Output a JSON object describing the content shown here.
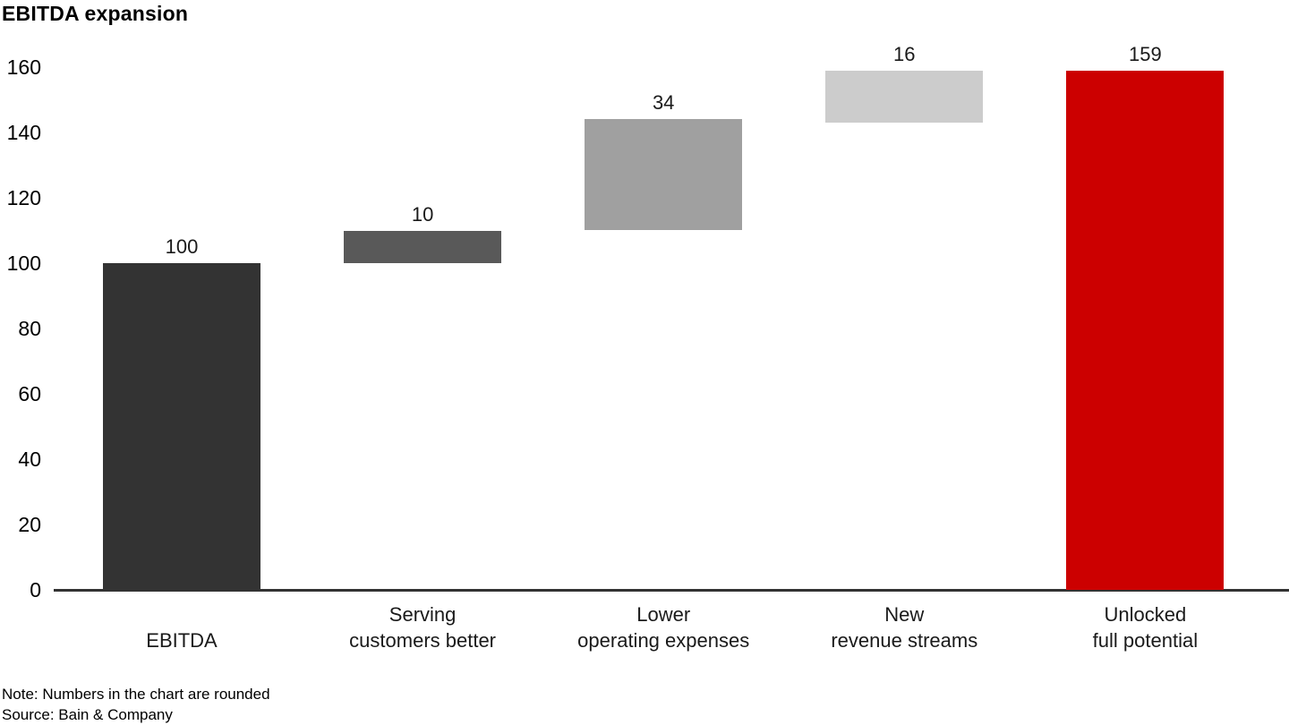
{
  "title": "EBITDA expansion",
  "note": "Note: Numbers in the chart are rounded",
  "source": "Source: Bain & Company",
  "chart_data": {
    "type": "bar",
    "subtype": "waterfall",
    "title": "EBITDA expansion",
    "categories": [
      "EBITDA",
      "Serving customers better",
      "Lower operating expenses",
      "New revenue streams",
      "Unlocked full potential"
    ],
    "category_lines": [
      [
        "EBITDA"
      ],
      [
        "Serving",
        "customers better"
      ],
      [
        "Lower",
        "operating expenses"
      ],
      [
        "New",
        "revenue streams"
      ],
      [
        "Unlocked",
        "full potential"
      ]
    ],
    "values": [
      100,
      10,
      34,
      16,
      159
    ],
    "value_labels": [
      "100",
      "10",
      "34",
      "16",
      "159"
    ],
    "bar_segments": [
      [
        0,
        100
      ],
      [
        100,
        110
      ],
      [
        110,
        144
      ],
      [
        143,
        159
      ],
      [
        0,
        159
      ]
    ],
    "bar_colors": [
      "#333333",
      "#595959",
      "#a0a0a0",
      "#cccccc",
      "#cc0000"
    ],
    "accent_color": "#cc0000",
    "axis_color": "#333333",
    "xlabel": "",
    "ylabel": "",
    "ylim": [
      0,
      160
    ],
    "yticks": [
      0,
      20,
      40,
      60,
      80,
      100,
      120,
      140,
      160
    ],
    "grid": false,
    "legend": null,
    "note": "Note: Numbers in the chart are rounded",
    "source": "Source: Bain & Company"
  }
}
